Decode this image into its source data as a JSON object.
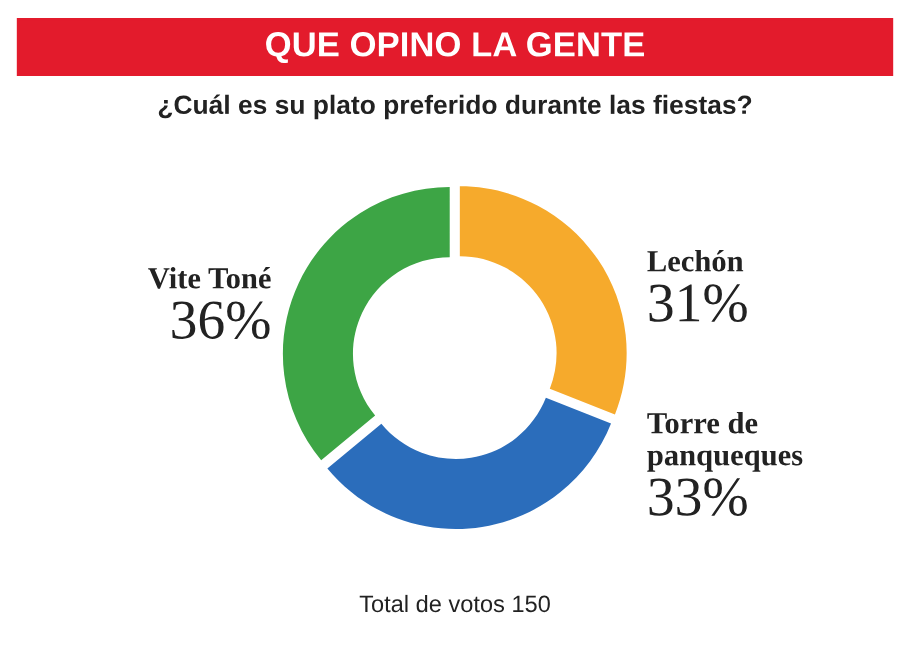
{
  "chart_data": {
    "type": "donut",
    "title": "QUE OPINO LA GENTE",
    "subtitle": "¿Cuál es su plato preferido durante las fiestas?",
    "categories": [
      "Lechón",
      "Torre de\npanqueques",
      "Vite Toné"
    ],
    "values": [
      31,
      33,
      36
    ],
    "value_labels": [
      "31%",
      "33%",
      "36%"
    ],
    "colors": [
      "#f6aa2c",
      "#2b6dbb",
      "#3da545"
    ],
    "annotations": [
      "Total de votos 150"
    ]
  }
}
